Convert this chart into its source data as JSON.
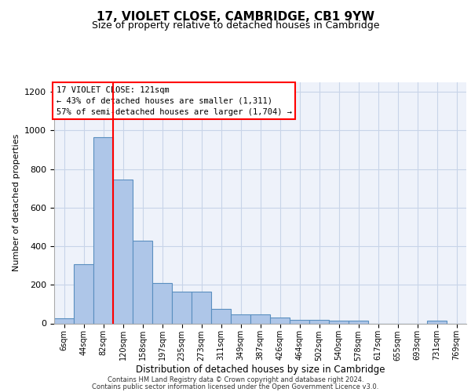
{
  "title": "17, VIOLET CLOSE, CAMBRIDGE, CB1 9YW",
  "subtitle": "Size of property relative to detached houses in Cambridge",
  "xlabel": "Distribution of detached houses by size in Cambridge",
  "ylabel": "Number of detached properties",
  "bin_labels": [
    "6sqm",
    "44sqm",
    "82sqm",
    "120sqm",
    "158sqm",
    "197sqm",
    "235sqm",
    "273sqm",
    "311sqm",
    "349sqm",
    "387sqm",
    "426sqm",
    "464sqm",
    "502sqm",
    "540sqm",
    "578sqm",
    "617sqm",
    "655sqm",
    "693sqm",
    "731sqm",
    "769sqm"
  ],
  "bar_heights": [
    25,
    305,
    965,
    745,
    430,
    210,
    165,
    165,
    75,
    48,
    48,
    30,
    18,
    18,
    15,
    15,
    0,
    0,
    0,
    15,
    0
  ],
  "bar_color": "#aec6e8",
  "bar_edge_color": "#5a8fc0",
  "bar_edge_width": 0.8,
  "grid_color": "#c8d4e8",
  "background_color": "#eef2fa",
  "annotation_box_text": "17 VIOLET CLOSE: 121sqm\n← 43% of detached houses are smaller (1,311)\n57% of semi-detached houses are larger (1,704) →",
  "annotation_box_color": "red",
  "vertical_line_x": 2.5,
  "vertical_line_color": "red",
  "footer_line1": "Contains HM Land Registry data © Crown copyright and database right 2024.",
  "footer_line2": "Contains public sector information licensed under the Open Government Licence v3.0.",
  "ylim": [
    0,
    1250
  ],
  "yticks": [
    0,
    200,
    400,
    600,
    800,
    1000,
    1200
  ],
  "title_fontsize": 11,
  "subtitle_fontsize": 9
}
